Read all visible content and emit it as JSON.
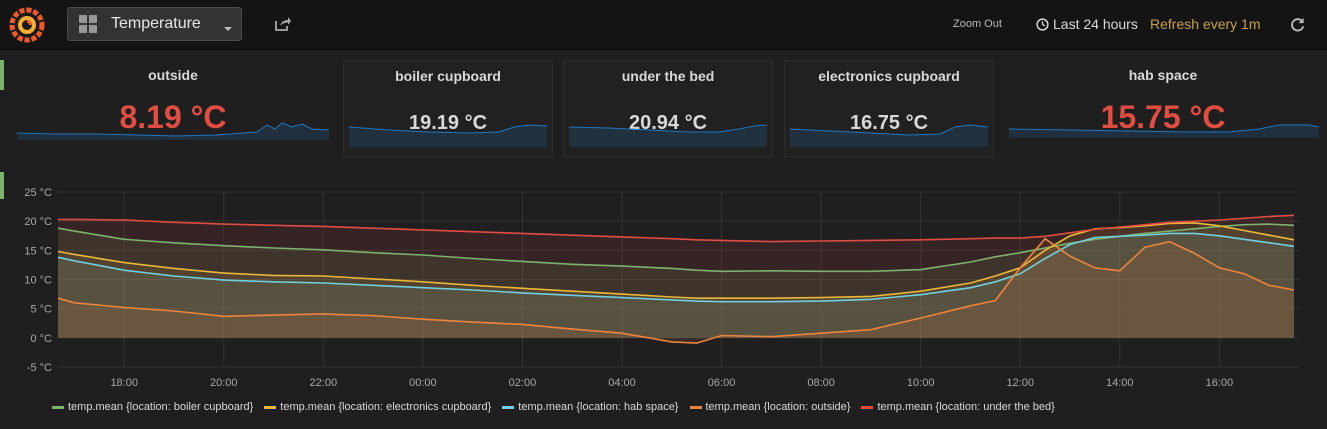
{
  "header": {
    "dashboard_title": "Temperature",
    "zoom_out_label": "Zoom Out",
    "time_range_label": "Last 24 hours",
    "refresh_label": "Refresh every 1m"
  },
  "icons": {
    "logo": "grafana-logo-icon",
    "dashboard": "grid-icon",
    "share": "share-icon",
    "clock": "clock-icon",
    "refresh": "refresh-icon"
  },
  "colors": {
    "warning": "#e24d42",
    "stat_neutral": "#d8d9da",
    "sparkline": "#1f78c1",
    "refresh": "#c9a04a",
    "row_marker": "#7eb26d"
  },
  "stats": [
    {
      "title": "outside",
      "value": "8.19 °C",
      "status": "warning"
    },
    {
      "title": "boiler cupboard",
      "value": "19.19 °C",
      "status": "ok"
    },
    {
      "title": "under the bed",
      "value": "20.94 °C",
      "status": "ok"
    },
    {
      "title": "electronics cupboard",
      "value": "16.75 °C",
      "status": "ok"
    },
    {
      "title": "hab space",
      "value": "15.75 °C",
      "status": "warning"
    }
  ],
  "chart_data": {
    "type": "line",
    "x_ticks": [
      "18:00",
      "20:00",
      "22:00",
      "00:00",
      "02:00",
      "04:00",
      "06:00",
      "08:00",
      "10:00",
      "12:00",
      "14:00",
      "16:00"
    ],
    "y_ticks": [
      "25 °C",
      "20 °C",
      "15 °C",
      "10 °C",
      "5 °C",
      "0 °C",
      "-5 °C"
    ],
    "ylim": [
      -5,
      25
    ],
    "x_hours": [
      16.67,
      17,
      18,
      19,
      20,
      21,
      22,
      23,
      24,
      25,
      26,
      27,
      28,
      29,
      29.5,
      30,
      31,
      32,
      33,
      34,
      35,
      35.5,
      36,
      36.5,
      37,
      37.5,
      38,
      38.5,
      39,
      39.5,
      40,
      40.5,
      41,
      41.5
    ],
    "grid": true,
    "fill_area": true,
    "legend_position": "bottom",
    "series": [
      {
        "name": "temp.mean {location: boiler cupboard}",
        "color": "#7eb26d",
        "values": [
          18.8,
          18.3,
          16.9,
          16.3,
          15.8,
          15.4,
          15.1,
          14.6,
          14.2,
          13.6,
          13.1,
          12.6,
          12.3,
          11.9,
          11.6,
          11.4,
          11.5,
          11.4,
          11.4,
          11.7,
          13.0,
          13.9,
          14.6,
          15.4,
          16.2,
          16.9,
          17.4,
          17.9,
          18.3,
          18.7,
          19.1,
          19.4,
          19.5,
          19.3
        ]
      },
      {
        "name": "temp.mean {location: electronics cupboard}",
        "color": "#eab839",
        "values": [
          14.8,
          14.3,
          12.9,
          11.9,
          11.1,
          10.7,
          10.6,
          10.1,
          9.6,
          9.0,
          8.5,
          8.0,
          7.5,
          7.0,
          6.8,
          6.8,
          6.8,
          6.9,
          7.1,
          8.0,
          9.4,
          10.6,
          12.0,
          15.0,
          17.5,
          18.7,
          18.9,
          19.2,
          19.6,
          19.7,
          19.2,
          18.4,
          17.6,
          16.8
        ]
      },
      {
        "name": "temp.mean {location: hab space}",
        "color": "#6ed0e0",
        "values": [
          13.8,
          13.2,
          11.6,
          10.6,
          9.9,
          9.6,
          9.4,
          9.0,
          8.6,
          8.2,
          7.7,
          7.3,
          6.9,
          6.5,
          6.3,
          6.2,
          6.2,
          6.3,
          6.6,
          7.4,
          8.6,
          9.6,
          11.0,
          13.6,
          16.0,
          17.2,
          17.4,
          17.6,
          17.9,
          17.9,
          17.5,
          16.9,
          16.3,
          15.7
        ]
      },
      {
        "name": "temp.mean {location: outside}",
        "color": "#ef843c",
        "values": [
          6.8,
          6.0,
          5.2,
          4.6,
          3.7,
          3.9,
          4.1,
          3.8,
          3.2,
          2.7,
          2.3,
          1.5,
          0.8,
          -0.7,
          -0.9,
          0.4,
          0.2,
          0.8,
          1.4,
          3.4,
          5.5,
          6.4,
          12.0,
          17.0,
          14.0,
          12.0,
          11.5,
          15.5,
          16.5,
          14.5,
          12.0,
          11.0,
          9.0,
          8.2
        ]
      },
      {
        "name": "temp.mean {location: under the bed}",
        "color": "#e24d42",
        "values": [
          20.3,
          20.3,
          20.2,
          19.8,
          19.5,
          19.3,
          19.1,
          18.8,
          18.5,
          18.2,
          17.9,
          17.6,
          17.3,
          17.0,
          16.8,
          16.7,
          16.5,
          16.6,
          16.7,
          16.8,
          17.0,
          17.1,
          17.1,
          17.4,
          18.0,
          18.6,
          19.0,
          19.4,
          19.8,
          20.0,
          20.2,
          20.5,
          20.8,
          21.0
        ]
      }
    ]
  }
}
